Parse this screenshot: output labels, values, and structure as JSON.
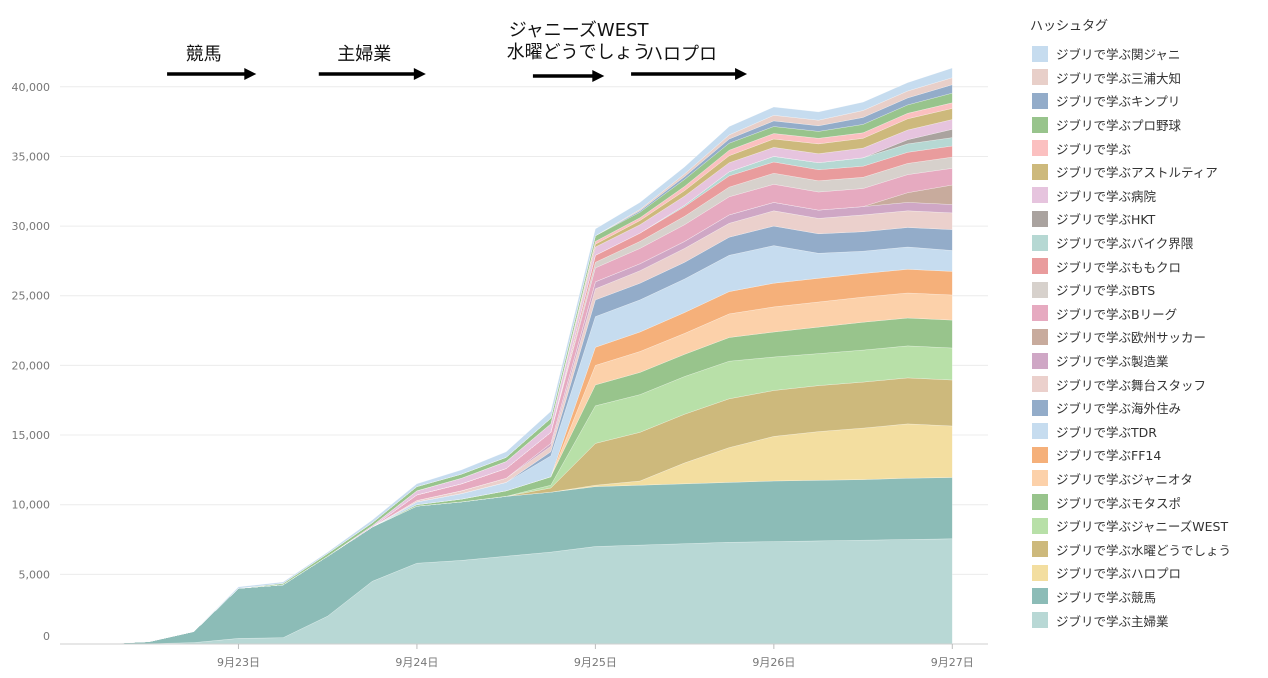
{
  "chart_data": {
    "type": "area",
    "stacked": true,
    "title": "",
    "xlabel": "",
    "ylabel": "",
    "x_ticks": [
      "9月23日",
      "9月24日",
      "9月25日",
      "9月26日",
      "9月27日"
    ],
    "y_ticks": [
      "0",
      "5,000",
      "10,000",
      "15,000",
      "20,000",
      "25,000",
      "30,000",
      "35,000",
      "40,000"
    ],
    "ylim": [
      0,
      43000
    ],
    "grid": true,
    "legend": {
      "title": "ハッシュタグ",
      "position": "right",
      "items": [
        {
          "name": "ジブリで学ぶ関ジャニ",
          "color": "#c6dcef"
        },
        {
          "name": "ジブリで学ぶ三浦大知",
          "color": "#e8cfc9"
        },
        {
          "name": "ジブリで学ぶキンプリ",
          "color": "#93acc9"
        },
        {
          "name": "ジブリで学ぶプロ野球",
          "color": "#98c48c"
        },
        {
          "name": "ジブリで学ぶ",
          "color": "#fbc0c0"
        },
        {
          "name": "ジブリで学ぶアストルティア",
          "color": "#cdb97c"
        },
        {
          "name": "ジブリで学ぶ病院",
          "color": "#e6c4de"
        },
        {
          "name": "ジブリで学ぶHKT",
          "color": "#aaa39f"
        },
        {
          "name": "ジブリで学ぶバイク界隈",
          "color": "#b6d8d3"
        },
        {
          "name": "ジブリで学ぶももクロ",
          "color": "#e99c9d"
        },
        {
          "name": "ジブリで学ぶBTS",
          "color": "#d7d1cc"
        },
        {
          "name": "ジブリで学ぶBリーグ",
          "color": "#e6aac0"
        },
        {
          "name": "ジブリで学ぶ欧州サッカー",
          "color": "#c8ab9d"
        },
        {
          "name": "ジブリで学ぶ製造業",
          "color": "#cfa7c5"
        },
        {
          "name": "ジブリで学ぶ舞台スタッフ",
          "color": "#ebd0cc"
        },
        {
          "name": "ジブリで学ぶ海外住み",
          "color": "#93acc9"
        },
        {
          "name": "ジブリで学ぶTDR",
          "color": "#c6dcef"
        },
        {
          "name": "ジブリで学ぶFF14",
          "color": "#f5b07a"
        },
        {
          "name": "ジブリで学ぶジャニオタ",
          "color": "#fcd1aa"
        },
        {
          "name": "ジブリで学ぶモタスポ",
          "color": "#98c48c"
        },
        {
          "name": "ジブリで学ぶジャニーズWEST",
          "color": "#b8e0a8"
        },
        {
          "name": "ジブリで学ぶ水曜どうでしょう",
          "color": "#cdb97c"
        },
        {
          "name": "ジブリで学ぶハロプロ",
          "color": "#f3dea0"
        },
        {
          "name": "ジブリで学ぶ競馬",
          "color": "#8cbcb7"
        },
        {
          "name": "ジブリで学ぶ主婦業",
          "color": "#b8d8d5"
        }
      ]
    },
    "x": [
      22.0,
      22.25,
      22.5,
      22.75,
      23.0,
      23.25,
      23.5,
      23.75,
      24.0,
      24.25,
      24.5,
      24.75,
      25.0,
      25.25,
      25.5,
      25.75,
      26.0,
      26.25,
      26.5,
      26.75,
      27.0
    ],
    "series": [
      {
        "name": "ジブリで学ぶ主婦業",
        "values": [
          0,
          0,
          20,
          100,
          400,
          450,
          2000,
          4500,
          5800,
          6000,
          6300,
          6600,
          7000,
          7100,
          7200,
          7300,
          7350,
          7400,
          7450,
          7500,
          7550
        ]
      },
      {
        "name": "ジブリで学ぶ競馬",
        "values": [
          0,
          20,
          150,
          800,
          3600,
          3800,
          4300,
          3900,
          4100,
          4200,
          4300,
          4300,
          4300,
          4300,
          4300,
          4300,
          4350,
          4350,
          4350,
          4400,
          4400
        ]
      },
      {
        "name": "ジブリで学ぶハロプロ",
        "values": [
          0,
          0,
          0,
          0,
          0,
          0,
          0,
          0,
          0,
          0,
          0,
          0,
          100,
          300,
          1500,
          2500,
          3200,
          3500,
          3700,
          3900,
          3700
        ]
      },
      {
        "name": "ジブリで学ぶ水曜どうでしょう",
        "values": [
          0,
          0,
          0,
          0,
          0,
          0,
          0,
          0,
          0,
          0,
          0,
          300,
          3000,
          3500,
          3500,
          3500,
          3300,
          3300,
          3300,
          3300,
          3300
        ]
      },
      {
        "name": "ジブリで学ぶジャニーズWEST",
        "values": [
          0,
          0,
          0,
          0,
          0,
          0,
          0,
          0,
          0,
          0,
          0,
          200,
          2700,
          2700,
          2700,
          2700,
          2400,
          2300,
          2300,
          2300,
          2300
        ]
      },
      {
        "name": "ジブリで学ぶモタスポ",
        "values": [
          0,
          0,
          0,
          0,
          0,
          0,
          0,
          0,
          100,
          200,
          400,
          600,
          1500,
          1600,
          1600,
          1700,
          1800,
          1900,
          2000,
          2000,
          2000
        ]
      },
      {
        "name": "ジブリで学ぶジャニオタ",
        "values": [
          0,
          0,
          0,
          0,
          0,
          0,
          0,
          0,
          0,
          0,
          0,
          0,
          1400,
          1500,
          1500,
          1700,
          1800,
          1800,
          1800,
          1800,
          1800
        ]
      },
      {
        "name": "ジブリで学ぶFF14",
        "values": [
          0,
          0,
          0,
          0,
          0,
          0,
          0,
          0,
          0,
          0,
          0,
          0,
          1300,
          1400,
          1500,
          1600,
          1700,
          1700,
          1700,
          1700,
          1700
        ]
      },
      {
        "name": "ジブリで学ぶTDR",
        "values": [
          0,
          0,
          0,
          0,
          0,
          0,
          0,
          0,
          200,
          400,
          600,
          1500,
          2200,
          2300,
          2400,
          2600,
          2700,
          1800,
          1600,
          1600,
          1500
        ]
      },
      {
        "name": "ジブリで学ぶ海外住み",
        "values": [
          0,
          0,
          0,
          0,
          0,
          0,
          0,
          0,
          0,
          0,
          0,
          300,
          1200,
          1200,
          1200,
          1300,
          1400,
          1400,
          1400,
          1400,
          1500
        ]
      },
      {
        "name": "ジブリで学ぶ舞台スタッフ",
        "values": [
          0,
          0,
          0,
          0,
          0,
          0,
          0,
          0,
          100,
          200,
          300,
          400,
          800,
          900,
          1000,
          1000,
          1100,
          1100,
          1200,
          1200,
          1200
        ]
      },
      {
        "name": "ジブリで学ぶ製造業",
        "values": [
          0,
          0,
          0,
          0,
          0,
          0,
          0,
          0,
          0,
          0,
          0,
          200,
          500,
          500,
          500,
          600,
          600,
          600,
          600,
          600,
          600
        ]
      },
      {
        "name": "ジブリで学ぶ欧州サッカー",
        "values": [
          0,
          0,
          0,
          0,
          0,
          0,
          0,
          0,
          0,
          0,
          0,
          0,
          0,
          0,
          0,
          0,
          0,
          0,
          0,
          700,
          1400
        ]
      },
      {
        "name": "ジブリで学ぶBリーグ",
        "values": [
          0,
          0,
          0,
          0,
          0,
          0,
          0,
          0,
          400,
          500,
          700,
          800,
          1000,
          1100,
          1200,
          1300,
          1300,
          1300,
          1300,
          1300,
          1200
        ]
      },
      {
        "name": "ジブリで学ぶBTS",
        "values": [
          0,
          0,
          0,
          0,
          0,
          0,
          0,
          0,
          0,
          0,
          0,
          0,
          400,
          500,
          600,
          700,
          800,
          800,
          800,
          800,
          800
        ]
      },
      {
        "name": "ジブリで学ぶももクロ",
        "values": [
          0,
          0,
          0,
          0,
          0,
          0,
          0,
          0,
          0,
          0,
          0,
          0,
          500,
          600,
          700,
          800,
          800,
          800,
          800,
          800,
          800
        ]
      },
      {
        "name": "ジブリで学ぶバイク界隈",
        "values": [
          0,
          0,
          0,
          0,
          0,
          0,
          0,
          0,
          0,
          0,
          0,
          0,
          0,
          0,
          100,
          300,
          400,
          500,
          600,
          600,
          600
        ]
      },
      {
        "name": "ジブリで学ぶHKT",
        "values": [
          0,
          0,
          0,
          0,
          0,
          0,
          0,
          0,
          0,
          0,
          0,
          0,
          0,
          0,
          0,
          0,
          0,
          0,
          0,
          300,
          600
        ]
      },
      {
        "name": "ジブリで学ぶ病院",
        "values": [
          0,
          0,
          0,
          0,
          0,
          0,
          0,
          100,
          300,
          400,
          500,
          600,
          600,
          600,
          650,
          650,
          650,
          650,
          700,
          700,
          700
        ]
      },
      {
        "name": "ジブリで学ぶアストルティア",
        "values": [
          0,
          0,
          0,
          0,
          0,
          0,
          0,
          0,
          0,
          0,
          0,
          0,
          200,
          300,
          400,
          500,
          600,
          700,
          700,
          800,
          800
        ]
      },
      {
        "name": "ジブリで学ぶ",
        "values": [
          0,
          0,
          0,
          0,
          0,
          0,
          0,
          0,
          0,
          0,
          0,
          0,
          200,
          200,
          300,
          400,
          400,
          400,
          400,
          400,
          400
        ]
      },
      {
        "name": "ジブリで学ぶプロ野球",
        "values": [
          0,
          0,
          0,
          0,
          0,
          100,
          200,
          200,
          300,
          300,
          300,
          400,
          400,
          400,
          500,
          500,
          500,
          500,
          600,
          600,
          700
        ]
      },
      {
        "name": "ジブリで学ぶキンプリ",
        "values": [
          0,
          0,
          0,
          0,
          0,
          0,
          0,
          0,
          0,
          0,
          0,
          0,
          0,
          100,
          200,
          300,
          400,
          400,
          500,
          500,
          600
        ]
      },
      {
        "name": "ジブリで学ぶ三浦大知",
        "values": [
          0,
          0,
          0,
          0,
          0,
          0,
          0,
          0,
          0,
          0,
          0,
          0,
          0,
          100,
          200,
          300,
          400,
          400,
          500,
          500,
          500
        ]
      },
      {
        "name": "ジブリで学ぶ関ジャニ",
        "values": [
          0,
          0,
          0,
          0,
          100,
          100,
          100,
          200,
          200,
          300,
          400,
          500,
          500,
          500,
          500,
          600,
          600,
          600,
          600,
          600,
          700
        ]
      }
    ],
    "annotations": [
      {
        "label": "競馬",
        "x_start": 22.6,
        "x_end": 23.1
      },
      {
        "label": "主婦業",
        "x_start": 23.45,
        "x_end": 24.05
      },
      {
        "label": "ジャニーズWEST\n水曜どうでしょう",
        "x_start": 24.65,
        "x_end": 25.05
      },
      {
        "label": "ハロプロ",
        "x_start": 25.2,
        "x_end": 25.85
      }
    ]
  }
}
